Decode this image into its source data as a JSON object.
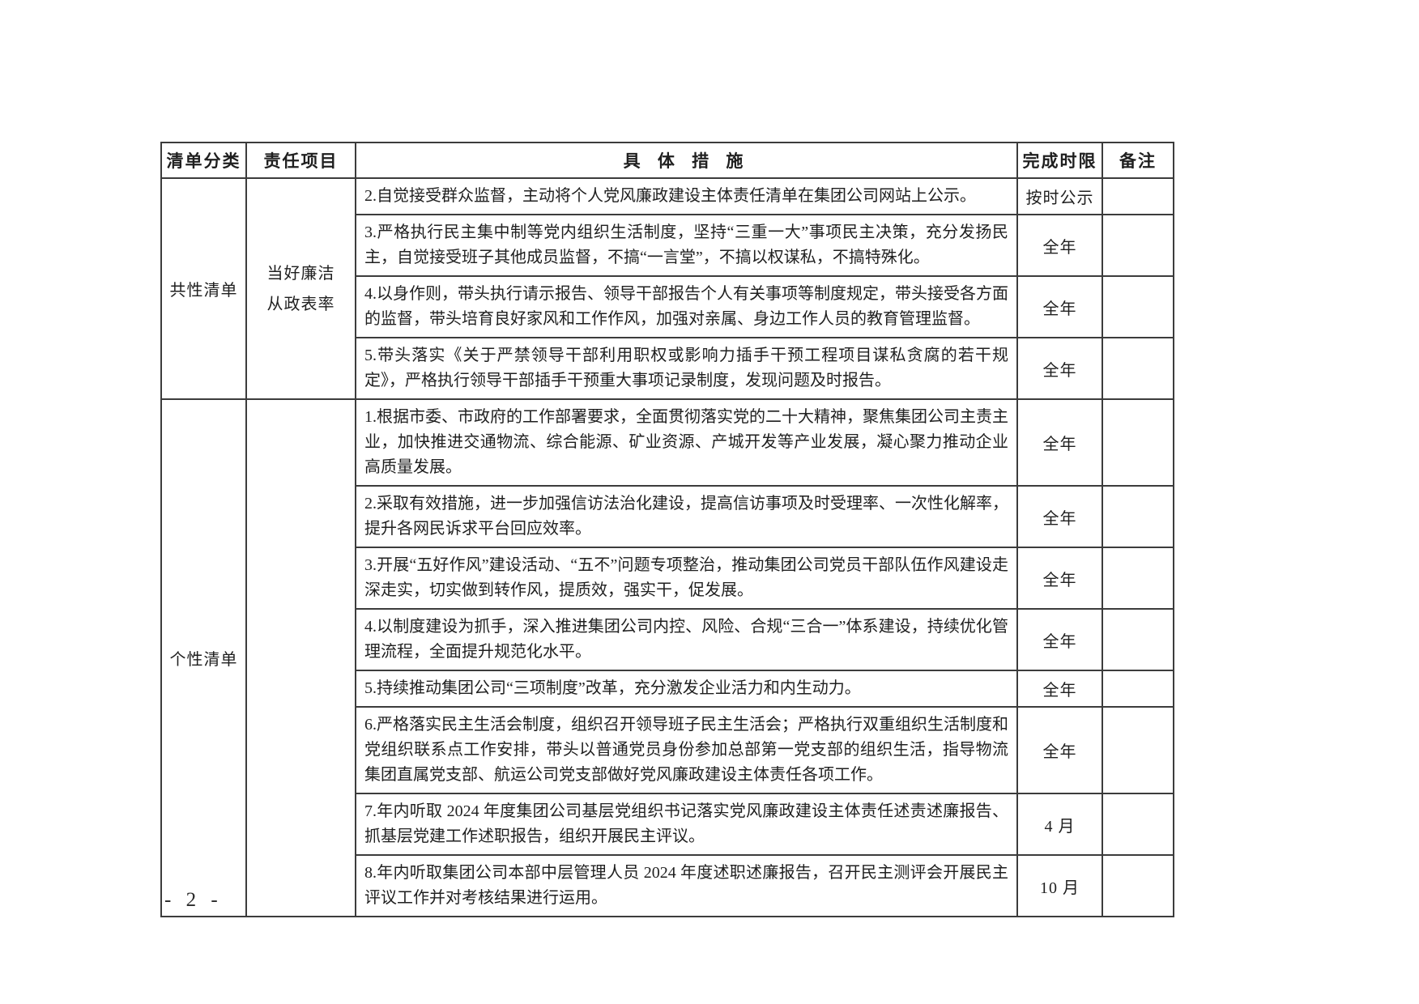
{
  "page": {
    "number": "- 2 -"
  },
  "table": {
    "headers": {
      "category": "清单分类",
      "responsibility": "责任项目",
      "measure": "具 体 措 施",
      "deadline": "完成时限",
      "remark": "备注"
    },
    "sections": [
      {
        "category": "共性清单",
        "responsibility": "当好廉洁从政表率",
        "responsibility_lines": [
          "当好廉洁",
          "从政表率"
        ],
        "rows": [
          {
            "measure": "2.自觉接受群众监督，主动将个人党风廉政建设主体责任清单在集团公司网站上公示。",
            "deadline": "按时公示",
            "remark": ""
          },
          {
            "measure": "3.严格执行民主集中制等党内组织生活制度，坚持“三重一大”事项民主决策，充分发扬民主，自觉接受班子其他成员监督，不搞“一言堂”，不搞以权谋私，不搞特殊化。",
            "deadline": "全年",
            "remark": ""
          },
          {
            "measure": "4.以身作则，带头执行请示报告、领导干部报告个人有关事项等制度规定，带头接受各方面的监督，带头培育良好家风和工作作风，加强对亲属、身边工作人员的教育管理监督。",
            "deadline": "全年",
            "remark": ""
          },
          {
            "measure": "5.带头落实《关于严禁领导干部利用职权或影响力插手干预工程项目谋私贪腐的若干规定》，严格执行领导干部插手干预重大事项记录制度，发现问题及时报告。",
            "deadline": "全年",
            "remark": ""
          }
        ]
      },
      {
        "category": "个性清单",
        "responsibility": "",
        "responsibility_lines": [
          "",
          ""
        ],
        "rows": [
          {
            "measure": "1.根据市委、市政府的工作部署要求，全面贯彻落实党的二十大精神，聚焦集团公司主责主业，加快推进交通物流、综合能源、矿业资源、产城开发等产业发展，凝心聚力推动企业高质量发展。",
            "deadline": "全年",
            "remark": ""
          },
          {
            "measure": "2.采取有效措施，进一步加强信访法治化建设，提高信访事项及时受理率、一次性化解率，提升各网民诉求平台回应效率。",
            "deadline": "全年",
            "remark": ""
          },
          {
            "measure": "3.开展“五好作风”建设活动、“五不”问题专项整治，推动集团公司党员干部队伍作风建设走深走实，切实做到转作风，提质效，强实干，促发展。",
            "deadline": "全年",
            "remark": ""
          },
          {
            "measure": "4.以制度建设为抓手，深入推进集团公司内控、风险、合规“三合一”体系建设，持续优化管理流程，全面提升规范化水平。",
            "deadline": "全年",
            "remark": ""
          },
          {
            "measure": "5.持续推动集团公司“三项制度”改革，充分激发企业活力和内生动力。",
            "deadline": "全年",
            "remark": ""
          },
          {
            "measure": "6.严格落实民主生活会制度，组织召开领导班子民主生活会；严格执行双重组织生活制度和党组织联系点工作安排，带头以普通党员身份参加总部第一党支部的组织生活，指导物流集团直属党支部、航运公司党支部做好党风廉政建设主体责任各项工作。",
            "deadline": "全年",
            "remark": ""
          },
          {
            "measure": "7.年内听取 2024 年度集团公司基层党组织书记落实党风廉政建设主体责任述责述廉报告、抓基层党建工作述职报告，组织开展民主评议。",
            "deadline": "4 月",
            "remark": ""
          },
          {
            "measure": "8.年内听取集团公司本部中层管理人员 2024 年度述职述廉报告，召开民主测评会开展民主评议工作并对考核结果进行运用。",
            "deadline": "10 月",
            "remark": ""
          }
        ]
      }
    ]
  }
}
